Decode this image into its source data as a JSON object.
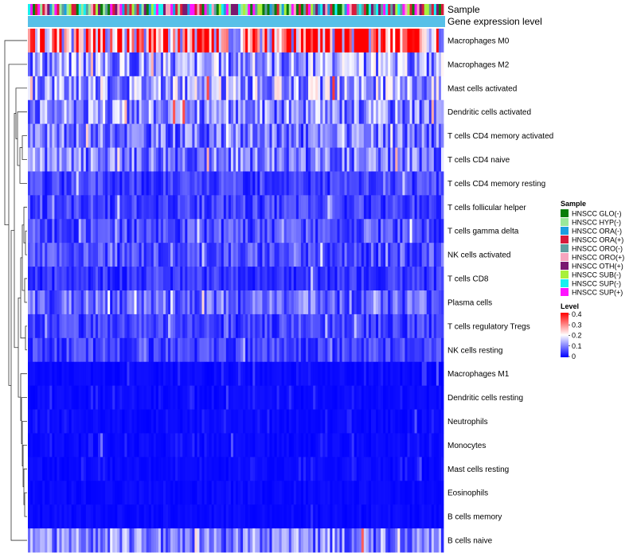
{
  "chart_data": {
    "type": "heatmap",
    "title": "",
    "annotation_tracks": [
      "Sample",
      "Gene expression level"
    ],
    "rows": [
      "Macrophages M0",
      "Macrophages M2",
      "Mast cells activated",
      "Dendritic cells activated",
      "T cells CD4 memory activated",
      "T cells CD4 naive",
      "T cells CD4 memory resting",
      "T cells follicular helper",
      "T cells gamma delta",
      "NK cells activated",
      "T cells CD8",
      "Plasma cells",
      "T cells regulatory  Tregs",
      "NK cells resting",
      "Macrophages M1",
      "Dendritic cells resting",
      "Neutrophils",
      "Monocytes",
      "Mast cells resting",
      "Eosinophils",
      "B cells memory",
      "B cells naive"
    ],
    "row_mean_level": [
      0.32,
      0.12,
      0.13,
      0.11,
      0.09,
      0.1,
      0.05,
      0.05,
      0.06,
      0.06,
      0.04,
      0.08,
      0.05,
      0.05,
      0.03,
      0.03,
      0.02,
      0.02,
      0.02,
      0.01,
      0.01,
      0.1
    ],
    "n_samples": 172,
    "legend_sample": {
      "title": "Sample",
      "entries": [
        {
          "label": "HNSCC GLO(-)",
          "color": "#0a7d0a"
        },
        {
          "label": "HNSCC HYP(-)",
          "color": "#9ae89a"
        },
        {
          "label": "HNSCC ORA(-)",
          "color": "#1c9fe0"
        },
        {
          "label": "HNSCC ORA(+)",
          "color": "#d81b3c"
        },
        {
          "label": "HNSCC ORO(-)",
          "color": "#5f9ea0"
        },
        {
          "label": "HNSCC ORO(+)",
          "color": "#f6a5be"
        },
        {
          "label": "HNSCC OTH(+)",
          "color": "#7a1870"
        },
        {
          "label": "HNSCC SUB(-)",
          "color": "#a8f03c"
        },
        {
          "label": "HNSCC SUP(-)",
          "color": "#18f0f0"
        },
        {
          "label": "HNSCC SUP(+)",
          "color": "#ff14ff"
        }
      ]
    },
    "legend_level": {
      "title": "Level",
      "ticks": [
        "0.4",
        "0.3",
        "0.2",
        "0.1",
        "0"
      ],
      "range": [
        0,
        0.4
      ],
      "colors": [
        "#0000ff",
        "#ffffff",
        "#ff0000"
      ]
    },
    "gene_expression_track_color": "#57c0e8"
  }
}
